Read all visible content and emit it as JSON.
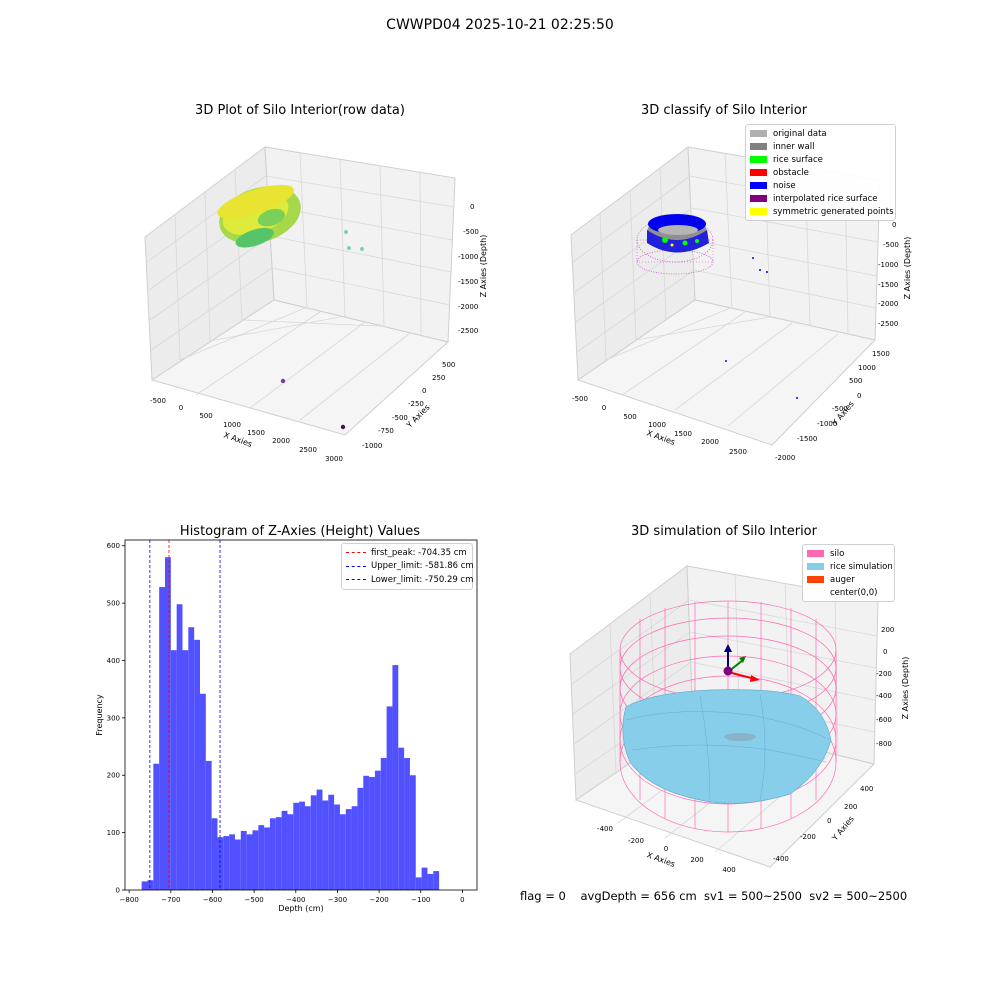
{
  "suptitle": "CWWPD04 2025-10-21 02:25:50",
  "footer": "flag = 0    avgDepth = 656 cm  sv1 = 500~2500  sv2 = 500~2500",
  "chart_data": [
    {
      "type": "scatter",
      "title": "3D Plot of Silo Interior(row data)",
      "xlabel": "X Axies",
      "ylabel": "Y Axies",
      "zlabel": "Z Axies (Depth)",
      "xticks": [
        "-500",
        "0",
        "500",
        "1000",
        "1500",
        "2000",
        "2500",
        "3000"
      ],
      "yticks": [
        "-1000",
        "-750",
        "-500",
        "-250",
        "0",
        "250",
        "500"
      ],
      "zticks": [
        "0",
        "-500",
        "-1000",
        "-1500",
        "-2000",
        "-2500"
      ],
      "colormap": "viridis"
    },
    {
      "type": "scatter",
      "title": "3D classify of Silo Interior",
      "xlabel": "X Axies",
      "ylabel": "Y Axies",
      "zlabel": "Z Axies (Depth)",
      "xticks": [
        "-500",
        "0",
        "500",
        "1000",
        "1500",
        "2000",
        "2500"
      ],
      "yticks": [
        "-2000",
        "-1500",
        "-1000",
        "-500",
        "0",
        "500",
        "1000",
        "1500"
      ],
      "zticks": [
        "0",
        "-500",
        "-1000",
        "-1500",
        "-2000",
        "-2500"
      ],
      "legend": [
        {
          "label": "original data",
          "color": "#b0b0b0"
        },
        {
          "label": "inner wall",
          "color": "#808080"
        },
        {
          "label": "rice surface",
          "color": "#00ff00"
        },
        {
          "label": "obstacle",
          "color": "#ff0000"
        },
        {
          "label": "noise",
          "color": "#0000ff"
        },
        {
          "label": "interpolated rice surface",
          "color": "#800080"
        },
        {
          "label": "symmetric generated points",
          "color": "#ffff00"
        }
      ]
    },
    {
      "type": "bar",
      "title": "Histogram of Z-Axies (Height) Values",
      "xlabel": "Depth (cm)",
      "ylabel": "Frequency",
      "xlim": [
        -810,
        35
      ],
      "ylim": [
        0,
        610
      ],
      "xticks": [
        -800,
        -700,
        -600,
        -500,
        -400,
        -300,
        -200,
        -100,
        0
      ],
      "yticks": [
        0,
        100,
        200,
        300,
        400,
        500,
        600
      ],
      "bar_color": "#4b4bff",
      "bins": [
        {
          "x": -763,
          "y": 15
        },
        {
          "x": -749,
          "y": 17
        },
        {
          "x": -735,
          "y": 220
        },
        {
          "x": -721,
          "y": 528
        },
        {
          "x": -707,
          "y": 580
        },
        {
          "x": -693,
          "y": 418
        },
        {
          "x": -679,
          "y": 498
        },
        {
          "x": -665,
          "y": 418
        },
        {
          "x": -651,
          "y": 458
        },
        {
          "x": -637,
          "y": 436
        },
        {
          "x": -623,
          "y": 342
        },
        {
          "x": -609,
          "y": 225
        },
        {
          "x": -595,
          "y": 125
        },
        {
          "x": -581,
          "y": 92
        },
        {
          "x": -567,
          "y": 94
        },
        {
          "x": -553,
          "y": 97
        },
        {
          "x": -539,
          "y": 88
        },
        {
          "x": -525,
          "y": 103
        },
        {
          "x": -511,
          "y": 97
        },
        {
          "x": -497,
          "y": 104
        },
        {
          "x": -483,
          "y": 113
        },
        {
          "x": -469,
          "y": 109
        },
        {
          "x": -455,
          "y": 125
        },
        {
          "x": -441,
          "y": 127
        },
        {
          "x": -427,
          "y": 138
        },
        {
          "x": -413,
          "y": 132
        },
        {
          "x": -399,
          "y": 152
        },
        {
          "x": -385,
          "y": 154
        },
        {
          "x": -371,
          "y": 146
        },
        {
          "x": -357,
          "y": 165
        },
        {
          "x": -343,
          "y": 175
        },
        {
          "x": -329,
          "y": 156
        },
        {
          "x": -315,
          "y": 166
        },
        {
          "x": -301,
          "y": 149
        },
        {
          "x": -287,
          "y": 132
        },
        {
          "x": -273,
          "y": 141
        },
        {
          "x": -259,
          "y": 146
        },
        {
          "x": -245,
          "y": 178
        },
        {
          "x": -231,
          "y": 199
        },
        {
          "x": -217,
          "y": 197
        },
        {
          "x": -203,
          "y": 208
        },
        {
          "x": -189,
          "y": 230
        },
        {
          "x": -175,
          "y": 320
        },
        {
          "x": -161,
          "y": 392
        },
        {
          "x": -147,
          "y": 248
        },
        {
          "x": -133,
          "y": 230
        },
        {
          "x": -119,
          "y": 200
        },
        {
          "x": -105,
          "y": 22
        },
        {
          "x": -91,
          "y": 39
        },
        {
          "x": -77,
          "y": 28
        },
        {
          "x": -63,
          "y": 33
        }
      ],
      "bin_width": 14,
      "vlines": [
        {
          "label": "first_peak: -704.35 cm",
          "x": -704.35,
          "color": "#ff0000"
        },
        {
          "label": "Upper_limit: -581.86 cm",
          "x": -581.86,
          "color": "#0000ff"
        },
        {
          "label": "Lower_limit: -750.29 cm",
          "x": -750.29,
          "color": "#0000ff"
        }
      ]
    },
    {
      "type": "surface",
      "title": "3D simulation of Silo Interior",
      "xlabel": "X Axies",
      "ylabel": "Y Axies",
      "zlabel": "Z Axies (Depth)",
      "xticks": [
        "-400",
        "-200",
        "0",
        "200",
        "400"
      ],
      "yticks": [
        "-400",
        "-200",
        "0",
        "200",
        "400"
      ],
      "zticks": [
        "200",
        "0",
        "-200",
        "-400",
        "-600",
        "-800"
      ],
      "legend": [
        {
          "label": "silo",
          "color": "#ff69b4"
        },
        {
          "label": "rice simulation",
          "color": "#87ceeb"
        },
        {
          "label": "auger",
          "color": "#ff4500"
        },
        {
          "label": "center(0,0)",
          "color": ""
        }
      ]
    }
  ]
}
